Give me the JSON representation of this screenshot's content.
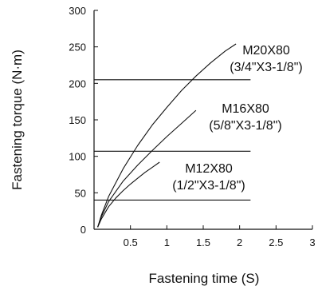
{
  "chart_data": {
    "type": "line",
    "xlabel": "Fastening time (S)",
    "ylabel": "Fastening torque (N·m)",
    "xlim": [
      0,
      3
    ],
    "ylim": [
      0,
      300
    ],
    "x_ticks": [
      0.5,
      1,
      1.5,
      2,
      2.5,
      3
    ],
    "x_tick_labels": [
      "0.5",
      "1",
      "1.5",
      "2",
      "2.5",
      "3"
    ],
    "y_ticks": [
      0,
      50,
      100,
      150,
      200,
      250,
      300
    ],
    "y_tick_labels": [
      "0",
      "50",
      "100",
      "150",
      "200",
      "250",
      "300"
    ],
    "grid": false,
    "legend": "none",
    "reference_lines": [
      {
        "y": 40,
        "x_range": [
          0,
          2.15
        ]
      },
      {
        "y": 107,
        "x_range": [
          0,
          2.15
        ]
      },
      {
        "y": 205,
        "x_range": [
          0,
          2.15
        ]
      }
    ],
    "series": [
      {
        "name": "M12X80 (1/2\"X3-1/8\")",
        "x": [
          0.05,
          0.1,
          0.2,
          0.3,
          0.4,
          0.5,
          0.6,
          0.7,
          0.8,
          0.9
        ],
        "y": [
          3,
          14,
          31,
          43,
          53,
          62,
          70,
          78,
          85,
          92
        ]
      },
      {
        "name": "M16X80 (5/8\"X3-1/8\")",
        "x": [
          0.05,
          0.1,
          0.2,
          0.4,
          0.6,
          0.8,
          1.0,
          1.2,
          1.4
        ],
        "y": [
          3,
          17,
          38,
          66,
          88,
          108,
          127,
          145,
          163
        ]
      },
      {
        "name": "M20X80 (3/4\"X3-1/8\")",
        "x": [
          0.05,
          0.1,
          0.2,
          0.4,
          0.6,
          0.8,
          1.0,
          1.2,
          1.4,
          1.6,
          1.8,
          1.95
        ],
        "y": [
          3,
          19,
          45,
          83,
          115,
          143,
          167,
          190,
          210,
          228,
          244,
          254
        ]
      }
    ],
    "annotations": [
      {
        "lines": [
          "M20X80",
          "(3/4\"X3-1/8\")"
        ]
      },
      {
        "lines": [
          "M16X80",
          "(5/8\"X3-1/8\")"
        ]
      },
      {
        "lines": [
          "M12X80",
          "(1/2\"X3-1/8\")"
        ]
      }
    ]
  }
}
